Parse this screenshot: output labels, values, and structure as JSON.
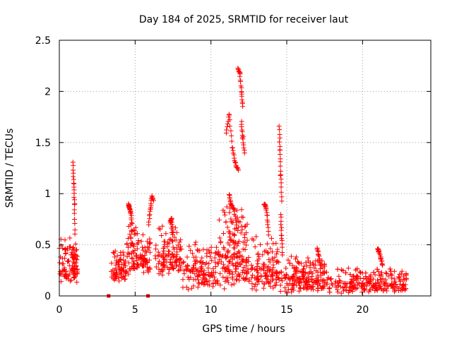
{
  "chart_data": {
    "type": "scatter",
    "title": "Day 184 of 2025, SRMTID for receiver laut",
    "xlabel": "GPS time / hours",
    "ylabel": "SRMTID / TECUs",
    "xlim": [
      0,
      24.5
    ],
    "ylim": [
      0,
      2.5
    ],
    "x_ticks": [
      0,
      5,
      10,
      15,
      20
    ],
    "y_ticks": [
      0,
      0.5,
      1,
      1.5,
      2,
      2.5
    ],
    "x_tick_labels": [
      "0",
      "5",
      "10",
      "15",
      "20"
    ],
    "y_tick_labels": [
      "0",
      "0.5",
      "1",
      "1.5",
      "2",
      "2.5"
    ],
    "grid": true,
    "marker": "+",
    "color": "#ff0000",
    "series": [
      {
        "name": "SRMTID",
        "segments": [
          {
            "x0": 0.0,
            "x1": 1.2,
            "n": 110,
            "lo": 0.12,
            "hi": 0.62
          },
          {
            "x0": 3.4,
            "x1": 4.4,
            "n": 70,
            "lo": 0.12,
            "hi": 0.45
          },
          {
            "x0": 4.4,
            "x1": 5.2,
            "n": 60,
            "lo": 0.2,
            "hi": 0.75
          },
          {
            "x0": 5.2,
            "x1": 6.0,
            "n": 55,
            "lo": 0.2,
            "hi": 0.62
          },
          {
            "x0": 6.3,
            "x1": 8.0,
            "n": 110,
            "lo": 0.18,
            "hi": 0.7
          },
          {
            "x0": 8.0,
            "x1": 10.5,
            "n": 140,
            "lo": 0.05,
            "hi": 0.55
          },
          {
            "x0": 10.5,
            "x1": 12.4,
            "n": 170,
            "lo": 0.05,
            "hi": 0.9
          },
          {
            "x0": 12.4,
            "x1": 14.4,
            "n": 120,
            "lo": 0.03,
            "hi": 0.6
          },
          {
            "x0": 14.4,
            "x1": 17.5,
            "n": 190,
            "lo": 0.02,
            "hi": 0.4
          },
          {
            "x0": 17.5,
            "x1": 22.9,
            "n": 300,
            "lo": 0.02,
            "hi": 0.28
          }
        ],
        "arcs": [
          {
            "x": [
              0.9,
              0.95,
              1.0,
              1.05
            ],
            "y": [
              1.3,
              1.1,
              0.9,
              0.6
            ]
          },
          {
            "x": [
              4.55,
              4.6,
              4.7,
              4.8
            ],
            "y": [
              0.9,
              0.87,
              0.82,
              0.7
            ]
          },
          {
            "x": [
              5.9,
              6.0,
              6.1,
              6.2
            ],
            "y": [
              0.7,
              0.85,
              0.97,
              0.93
            ]
          },
          {
            "x": [
              7.3,
              7.4,
              7.5
            ],
            "y": [
              0.72,
              0.75,
              0.6
            ]
          },
          {
            "x": [
              11.0,
              11.2,
              11.4,
              11.6,
              11.8
            ],
            "y": [
              1.6,
              1.77,
              1.45,
              1.3,
              1.22
            ]
          },
          {
            "x": [
              11.2,
              11.3,
              11.5,
              11.7
            ],
            "y": [
              1.0,
              0.9,
              0.85,
              0.7
            ]
          },
          {
            "x": [
              11.8,
              11.9,
              12.0,
              12.1
            ],
            "y": [
              2.22,
              2.18,
              2.0,
              1.85
            ]
          },
          {
            "x": [
              12.0,
              12.1,
              12.2
            ],
            "y": [
              1.7,
              1.55,
              1.4
            ]
          },
          {
            "x": [
              13.5,
              13.6,
              13.7,
              13.8
            ],
            "y": [
              0.9,
              0.88,
              0.78,
              0.6
            ]
          },
          {
            "x": [
              14.5,
              14.55,
              14.6,
              14.65
            ],
            "y": [
              1.66,
              1.43,
              1.18,
              0.93
            ]
          },
          {
            "x": [
              14.6,
              14.65,
              14.7
            ],
            "y": [
              0.8,
              0.6,
              0.4
            ]
          },
          {
            "x": [
              17.0,
              17.1,
              17.2
            ],
            "y": [
              0.47,
              0.4,
              0.3
            ]
          },
          {
            "x": [
              21.0,
              21.1,
              21.2,
              21.3
            ],
            "y": [
              0.46,
              0.43,
              0.37,
              0.3
            ]
          }
        ]
      }
    ],
    "outliers": [
      {
        "x": 3.25,
        "y": 0.0
      },
      {
        "x": 5.85,
        "y": 0.0
      }
    ]
  }
}
